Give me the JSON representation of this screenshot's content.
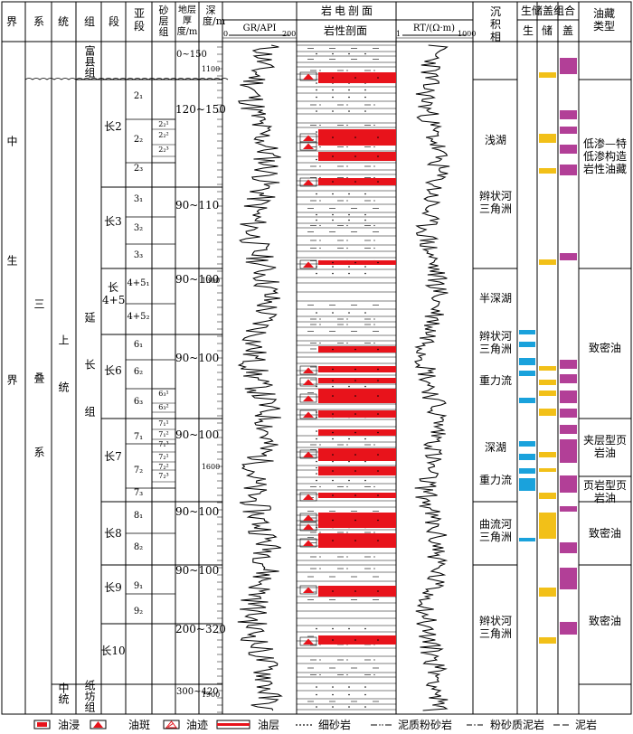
{
  "header": {
    "jie": "界",
    "xi": "系",
    "tong": "统",
    "zu": "组",
    "duan": "段",
    "yaduan": "亚段",
    "shaceng_zu": "砂层组",
    "thickness_label": "地层厚度/m",
    "depth_label": "深度/m",
    "log_section": "岩电剖面",
    "gr_label": "GR/API",
    "gr_min": "0",
    "gr_max": "200",
    "litho_label": "岩性剖面",
    "rt_label": "RT/(Ω·m)",
    "rt_min": "1",
    "rt_max": "1000",
    "facies": "沉积相",
    "combo": "生储盖组合",
    "combo_sheng": "生",
    "combo_chu": "储",
    "combo_gai": "盖",
    "reservoir_type": "油藏类型"
  },
  "strat": {
    "jie": "中生界",
    "xi": "三叠系",
    "tong_upper": "上统",
    "tong_middle": "中统",
    "zu_yanchang": "延长组",
    "zu_fuxian": "富县组",
    "zu_zhifang": "纸坊组"
  },
  "members": [
    {
      "name": "长2",
      "subs": [
        "2₁",
        "2₂",
        "2₃"
      ],
      "thick": "120~150"
    },
    {
      "name": "长3",
      "subs": [
        "3₁",
        "3₂",
        "3₃"
      ],
      "thick": "90~110"
    },
    {
      "name": "长4+5",
      "subs": [
        "4+5₁",
        "4+5₂"
      ],
      "thick": "90~100"
    },
    {
      "name": "长6",
      "subs": [
        "6₁",
        "6₂",
        "6₃"
      ],
      "thick": "90~100"
    },
    {
      "name": "长7",
      "subs": [
        "7₁",
        "7₂",
        "7₃"
      ],
      "thick": "90~100"
    },
    {
      "name": "长8",
      "subs": [
        "8₁",
        "8₂"
      ],
      "thick": "90~100"
    },
    {
      "name": "长9",
      "subs": [
        "9₁",
        "9₂"
      ],
      "thick": "90~100"
    },
    {
      "name": "长10",
      "subs": [],
      "thick": "200~320"
    }
  ],
  "other_thick": {
    "fuxian": "0~150",
    "zhifang": "300~420"
  },
  "sand_groups": [
    "2₂¹",
    "2₂²",
    "2₂³",
    "6₃¹",
    "6₃²",
    "7₁¹",
    "7₁²",
    "7₁³",
    "7₂¹",
    "7₂²",
    "7₂³"
  ],
  "depth_marks": [
    "1100",
    "1300",
    "1600",
    "1900"
  ],
  "facies": [
    "浅湖",
    "辫状河三角洲",
    "半深湖",
    "辫状河三角洲",
    "重力流",
    "深湖",
    "重力流",
    "曲流河三角洲",
    "辫状河三角洲"
  ],
  "reservoir_types": [
    "低渗—特低渗构造岩性油藏",
    "致密油",
    "夹层型页岩油",
    "页岩型页岩油",
    "致密油",
    "致密油"
  ],
  "legend": {
    "youjin": "油浸",
    "youban": "油斑",
    "youji": "油迹",
    "youceng": "油层",
    "xishayan": "细砂岩",
    "nizhi_fenshayan": "泥质粉砂岩",
    "fenshazhi_niyan": "粉砂质泥岩",
    "niyan": "泥岩"
  },
  "colors": {
    "oil": "#e8131b",
    "sheng": "#1aa2dc",
    "chu": "#f2c018",
    "gai": "#b23f97",
    "line": "#000000"
  }
}
